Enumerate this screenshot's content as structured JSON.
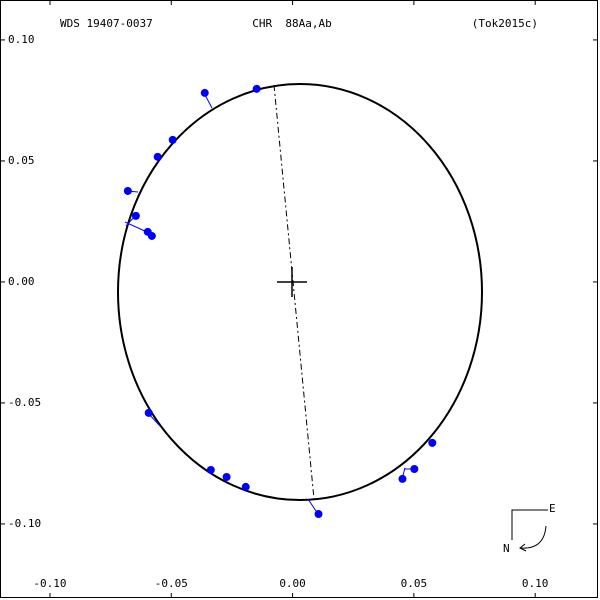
{
  "chart_data": {
    "type": "scatter",
    "id": "WDS 19407-0037",
    "title": "CHR  88Aa,Ab",
    "reference": "(Tok2015c)",
    "compass": [
      "E",
      "N"
    ],
    "xlim": [
      -0.1206,
      0.1259
    ],
    "ylim": [
      -0.1306,
      0.1165
    ],
    "xticks": [
      {
        "value": -0.1,
        "label": "-0.10"
      },
      {
        "value": -0.05,
        "label": "-0.05"
      },
      {
        "value": 0,
        "label": "0.00"
      },
      {
        "value": 0.05,
        "label": "0.05"
      },
      {
        "value": 0.1,
        "label": "0.10"
      }
    ],
    "yticks": [
      {
        "value": 0.1,
        "label": "0.10"
      },
      {
        "value": 0.05,
        "label": "0.05"
      },
      {
        "value": 0,
        "label": "0.00"
      },
      {
        "value": -0.05,
        "label": "-0.05"
      },
      {
        "value": -0.1,
        "label": "-0.10"
      }
    ],
    "series": [
      {
        "color": "#0000ff",
        "x": [
          -0.0362,
          -0.0148,
          -0.0494,
          -0.0556,
          -0.0679,
          -0.0646,
          -0.0597,
          -0.058,
          -0.0593,
          -0.0337,
          -0.0272,
          -0.0193,
          0.0107,
          0.0453,
          0.0502,
          0.0576
        ],
        "values": [
          0.0781,
          0.0798,
          0.0587,
          0.0517,
          0.0376,
          0.0273,
          0.0207,
          0.019,
          -0.0541,
          -0.0777,
          -0.0806,
          -0.0847,
          -0.0959,
          -0.0814,
          -0.0773,
          -0.0665
        ]
      }
    ]
  }
}
